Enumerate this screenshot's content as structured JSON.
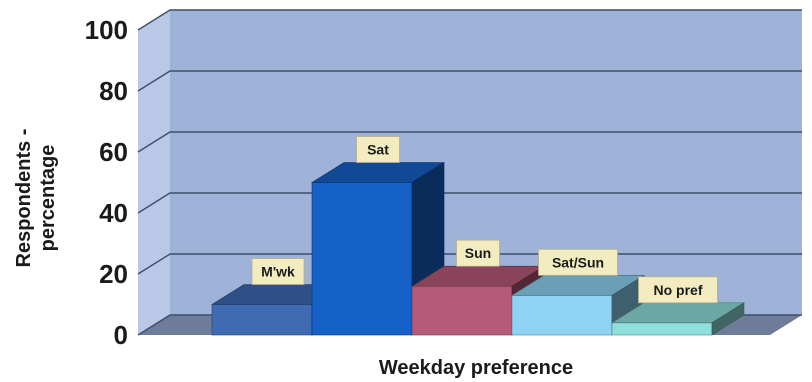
{
  "chart_data": {
    "type": "bar",
    "title": "",
    "xlabel": "Weekday preference",
    "ylabel_lines": [
      "Respondents -",
      "percentage"
    ],
    "ylim": [
      0,
      100
    ],
    "yticks": [
      0,
      20,
      40,
      60,
      80,
      100
    ],
    "grid": true,
    "categories": [
      "M'wk",
      "Sat",
      "Sun",
      "Sat/Sun",
      "No pref"
    ],
    "values": [
      10,
      50,
      16,
      13,
      4
    ],
    "colors": [
      "#3e6bb2",
      "#1661c8",
      "#b65a7a",
      "#8fd3f4",
      "#8fe0dc"
    ],
    "background_color": "#9fb3d8",
    "label_box_color": "#f2ecc0"
  }
}
